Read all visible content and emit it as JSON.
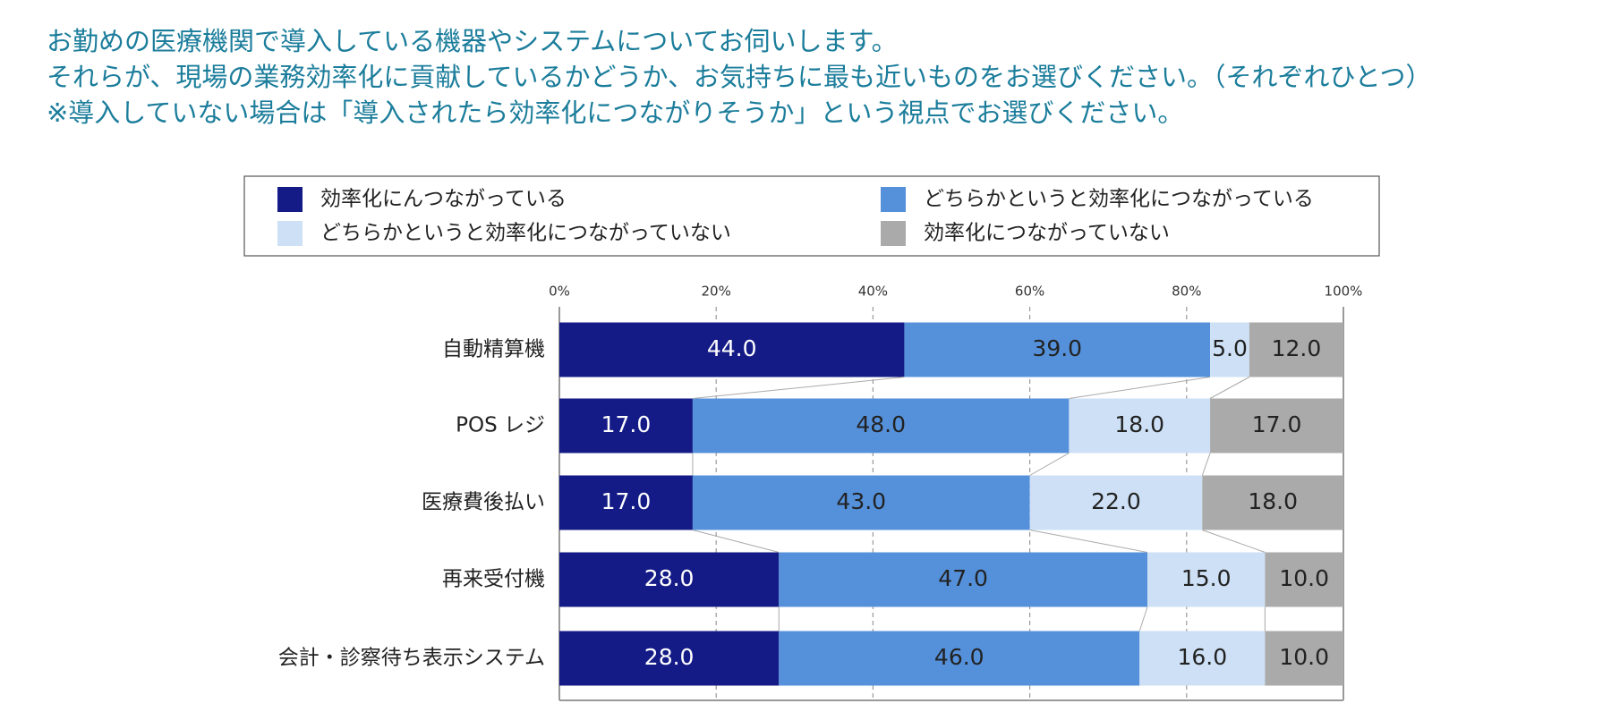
{
  "chart_data": {
    "type": "stacked_barh",
    "title": [
      "お勤めの医療機関で導入している機器やシステムについてお伺いします。",
      "それらが、現場の業務効率化に貢献しているかどうか、お気持ちに最も近いものをお選びください。（それぞれひとつ）",
      "※導入していない場合は「導入されたら効率化につながりそうか」という視点でお選びください。"
    ],
    "categories": [
      "自動精算機",
      "POS レジ",
      "医療費後払い",
      "再来受付機",
      "会計・診察待ち表示システム"
    ],
    "series": [
      {
        "name": "効率化にんつながっている",
        "color": "#141b86",
        "values": [
          44,
          17,
          17,
          28,
          28
        ],
        "value_labels": [
          "44.0",
          "17.0",
          "17.0",
          "28.0",
          "28.0"
        ]
      },
      {
        "name": "どちらかというと効率化につながっている",
        "color": "#5591db",
        "values": [
          39,
          48,
          43,
          47,
          46
        ],
        "value_labels": [
          "39.0",
          "48.0",
          "43.0",
          "47.0",
          "46.0"
        ]
      },
      {
        "name": "どちらかというと効率化につながっていない",
        "color": "#cde0f5",
        "values": [
          5,
          18,
          22,
          15,
          16
        ],
        "value_labels": [
          "5.0",
          "18.0",
          "22.0",
          "15.0",
          "16.0"
        ]
      },
      {
        "name": "効率化につながっていない",
        "color": "#aaaaaa",
        "values": [
          12,
          17,
          18,
          10,
          10
        ],
        "value_labels": [
          "12.0",
          "17.0",
          "18.0",
          "10.0",
          "10.0"
        ]
      }
    ],
    "xlim": [
      0,
      100
    ],
    "xticks": [
      {
        "value": 0,
        "label": "0%"
      },
      {
        "value": 20,
        "label": "20%"
      },
      {
        "value": 40,
        "label": "40%"
      },
      {
        "value": 60,
        "label": "60%"
      },
      {
        "value": 80,
        "label": "80%"
      },
      {
        "value": 100,
        "label": "100%"
      }
    ],
    "grid": true
  }
}
